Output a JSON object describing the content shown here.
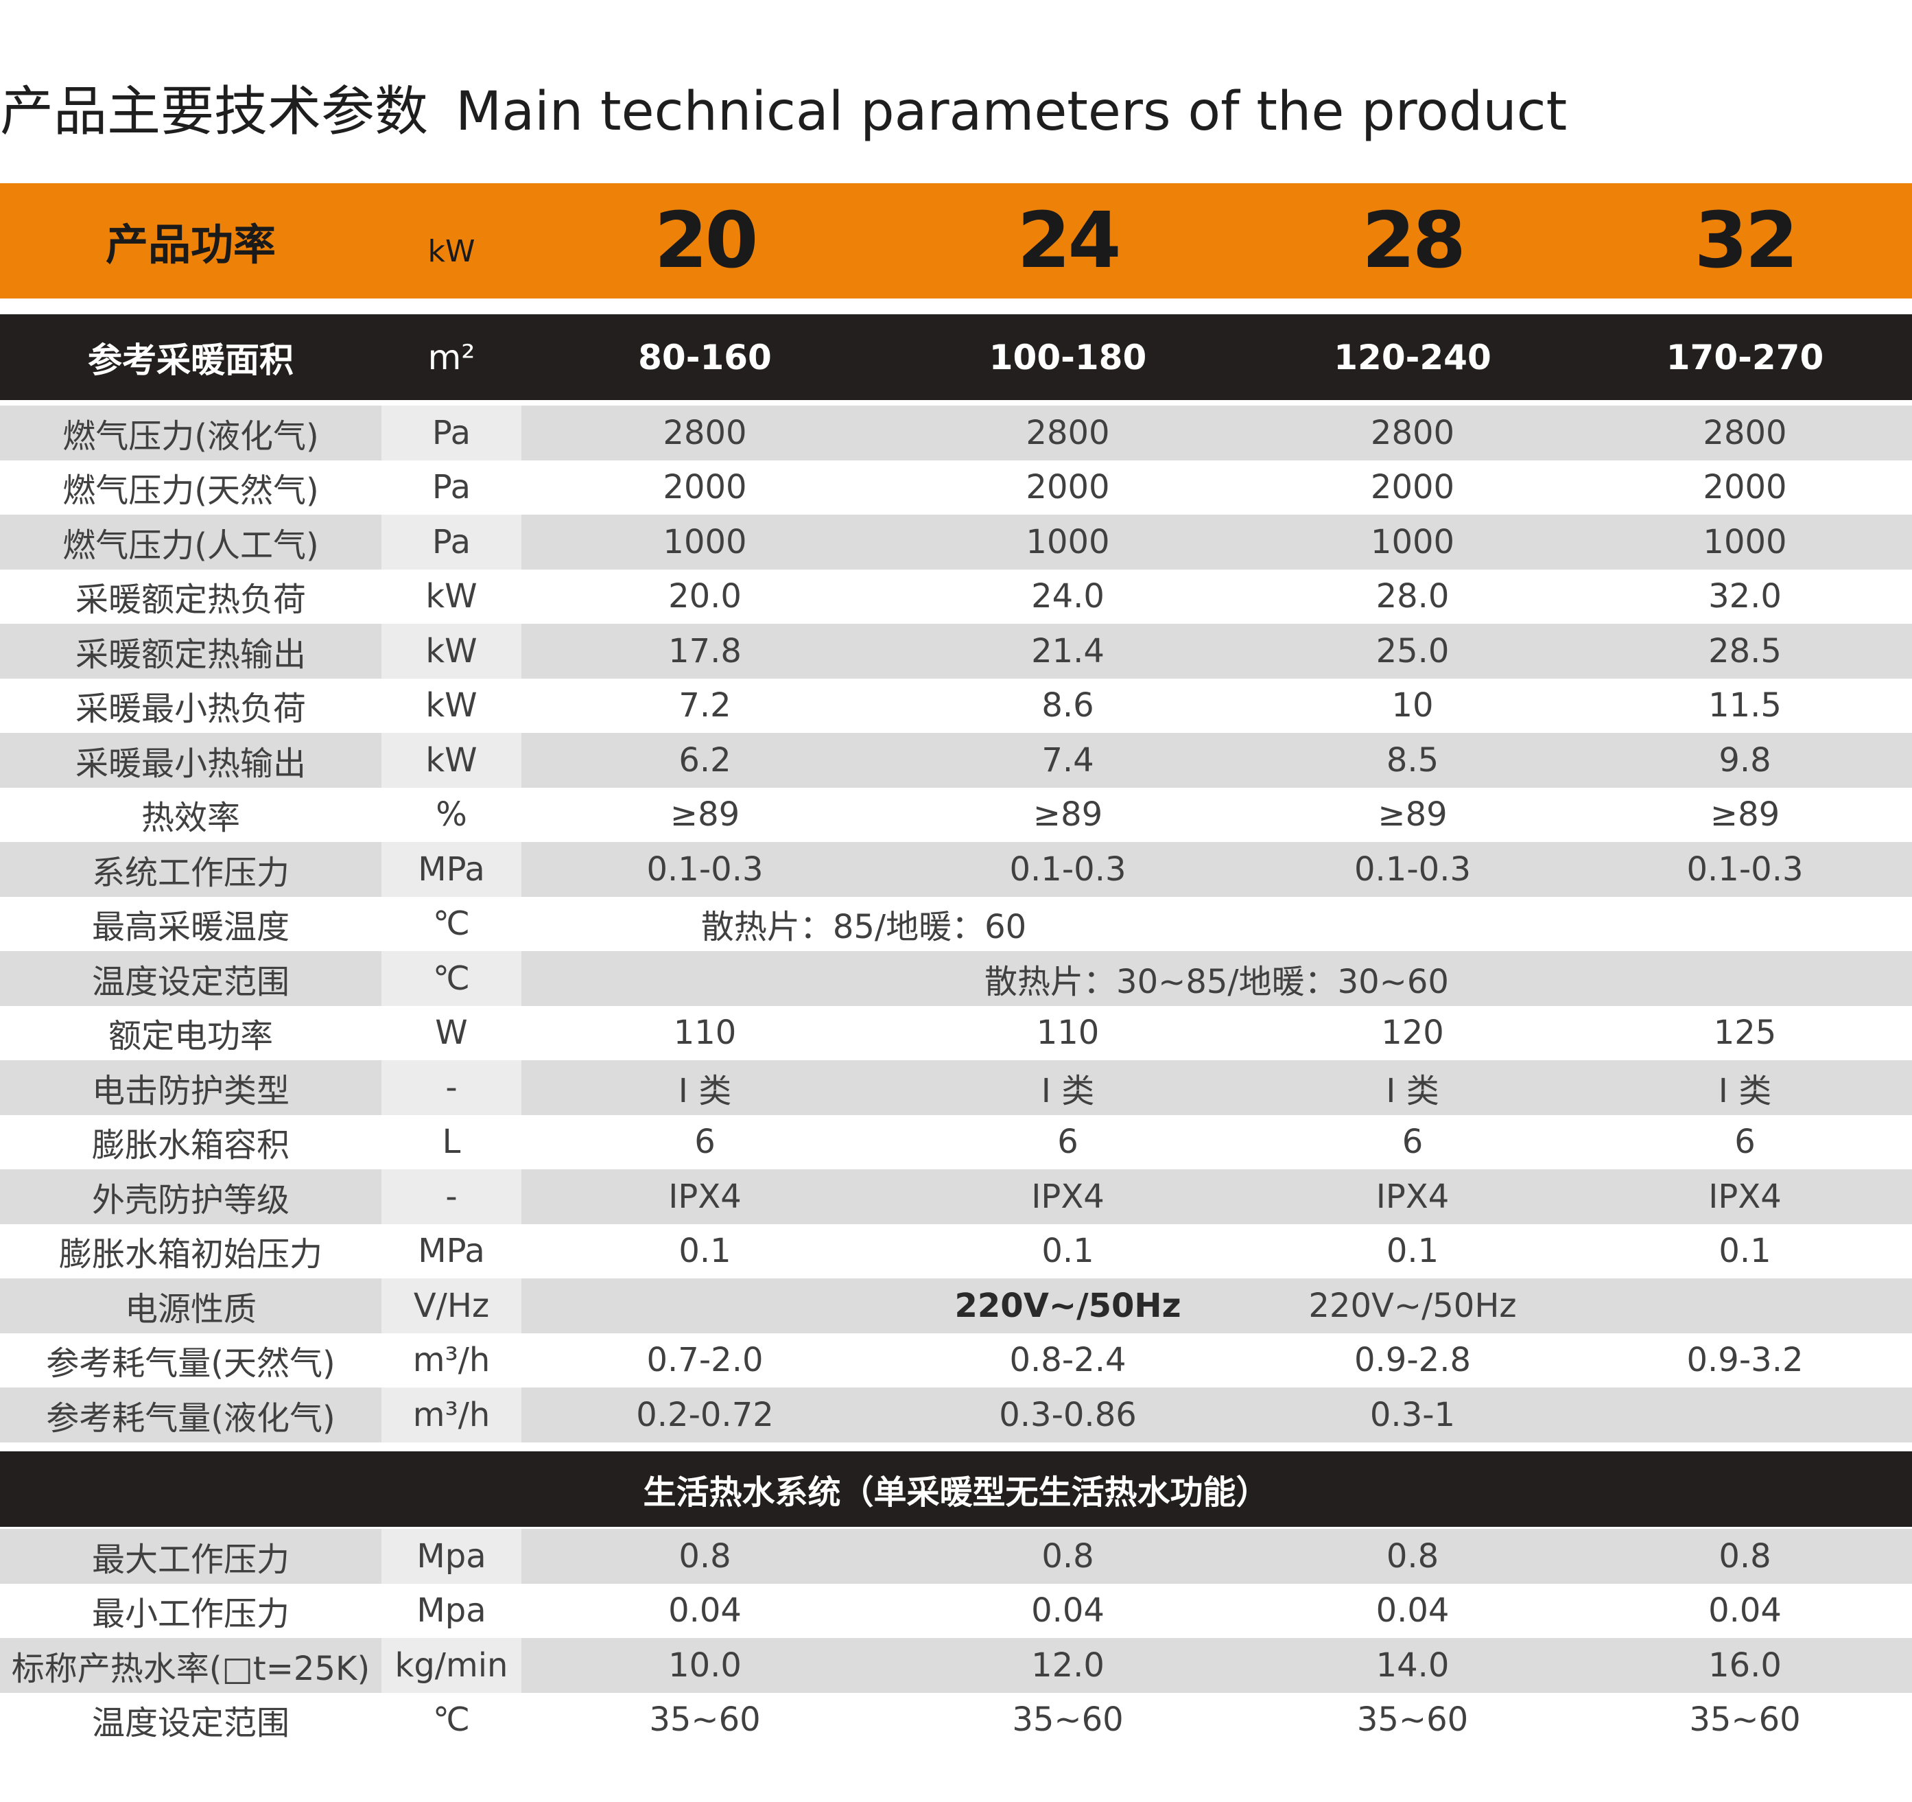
{
  "title": {
    "zh": "产品主要技术参数",
    "en": "Main technical parameters of the product"
  },
  "colors": {
    "accent": "#ee8208",
    "header_dark": "#231f1e",
    "row_gray": "#dcdcdc"
  },
  "power_header": {
    "label": "产品功率",
    "unit": "kW",
    "values": [
      "20",
      "24",
      "28",
      "32"
    ]
  },
  "area_header": {
    "label": "参考采暖面积",
    "unit": "m²",
    "values": [
      "80-160",
      "100-180",
      "120-240",
      "170-270"
    ]
  },
  "heating_rows": [
    {
      "label": "燃气压力(液化气)",
      "unit": "Pa",
      "values": [
        "2800",
        "2800",
        "2800",
        "2800"
      ]
    },
    {
      "label": "燃气压力(天然气)",
      "unit": "Pa",
      "values": [
        "2000",
        "2000",
        "2000",
        "2000"
      ]
    },
    {
      "label": "燃气压力(人工气)",
      "unit": "Pa",
      "values": [
        "1000",
        "1000",
        "1000",
        "1000"
      ]
    },
    {
      "label": "采暖额定热负荷",
      "unit": "kW",
      "values": [
        "20.0",
        "24.0",
        "28.0",
        "32.0"
      ]
    },
    {
      "label": "采暖额定热输出",
      "unit": "kW",
      "values": [
        "17.8",
        "21.4",
        "25.0",
        "28.5"
      ]
    },
    {
      "label": "采暖最小热负荷",
      "unit": "kW",
      "values": [
        "7.2",
        "8.6",
        "10",
        "11.5"
      ]
    },
    {
      "label": "采暖最小热输出",
      "unit": "kW",
      "values": [
        "6.2",
        "7.4",
        "8.5",
        "9.8"
      ]
    },
    {
      "label": "热效率",
      "unit": "%",
      "values": [
        "≥89",
        "≥89",
        "≥89",
        "≥89"
      ]
    },
    {
      "label": "系统工作压力",
      "unit": "MPa",
      "values": [
        "0.1-0.3",
        "0.1-0.3",
        "0.1-0.3",
        "0.1-0.3"
      ]
    },
    {
      "label": "最高采暖温度",
      "unit": "℃",
      "span_left": "散热片：85/地暖：60"
    },
    {
      "label": "温度设定范围",
      "unit": "℃",
      "span_all": "散热片：30~85/地暖：30~60"
    },
    {
      "label": "额定电功率",
      "unit": "W",
      "values": [
        "110",
        "110",
        "120",
        "125"
      ]
    },
    {
      "label": "电击防护类型",
      "unit": "-",
      "values": [
        "I 类",
        "I 类",
        "I 类",
        "I 类"
      ]
    },
    {
      "label": "膨胀水箱容积",
      "unit": "L",
      "values": [
        "6",
        "6",
        "6",
        "6"
      ]
    },
    {
      "label": "外壳防护等级",
      "unit": "-",
      "values": [
        "IPX4",
        "IPX4",
        "IPX4",
        "IPX4"
      ]
    },
    {
      "label": "膨胀水箱初始压力",
      "unit": "MPa",
      "values": [
        "0.1",
        "0.1",
        "0.1",
        "0.1"
      ]
    },
    {
      "label": "电源性质",
      "unit": "V/Hz",
      "values": [
        "",
        "220V~/50Hz",
        "220V~/50Hz",
        ""
      ],
      "bold_index": 1
    },
    {
      "label": "参考耗气量(天然气)",
      "unit": "m³/h",
      "values": [
        "0.7-2.0",
        "0.8-2.4",
        "0.9-2.8",
        "0.9-3.2"
      ]
    },
    {
      "label": "参考耗气量(液化气)",
      "unit": "m³/h",
      "values": [
        "0.2-0.72",
        "0.3-0.86",
        "0.3-1",
        ""
      ]
    }
  ],
  "dhw_header": "生活热水系统（单采暖型无生活热水功能）",
  "dhw_rows": [
    {
      "label": "最大工作压力",
      "unit": "Mpa",
      "values": [
        "0.8",
        "0.8",
        "0.8",
        "0.8"
      ]
    },
    {
      "label": "最小工作压力",
      "unit": "Mpa",
      "values": [
        "0.04",
        "0.04",
        "0.04",
        "0.04"
      ]
    },
    {
      "label": "标称产热水率(□t=25K)",
      "unit": "kg/min",
      "values": [
        "10.0",
        "12.0",
        "14.0",
        "16.0"
      ]
    },
    {
      "label": "温度设定范围",
      "unit": "℃",
      "values": [
        "35~60",
        "35~60",
        "35~60",
        "35~60"
      ]
    }
  ]
}
